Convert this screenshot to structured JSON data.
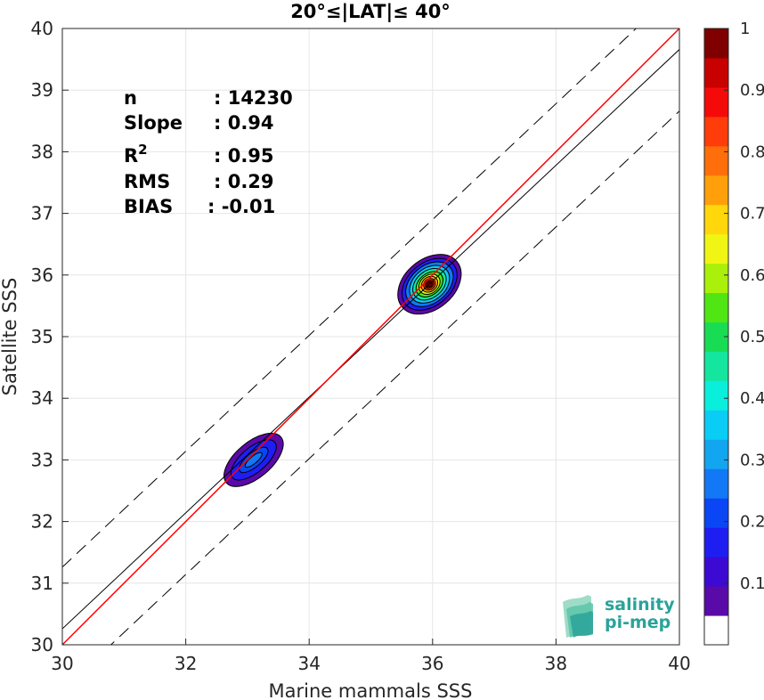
{
  "chart_data": {
    "type": "heatmap",
    "title": "20°≤|LAT|≤ 40°",
    "xlabel": "Marine mammals SSS",
    "ylabel": "Satellite SSS",
    "xlim": [
      30,
      40
    ],
    "ylim": [
      30,
      40
    ],
    "xticks": [
      "30",
      "32",
      "34",
      "36",
      "38",
      "40"
    ],
    "yticks": [
      "30",
      "31",
      "32",
      "33",
      "34",
      "35",
      "36",
      "37",
      "38",
      "39",
      "40"
    ],
    "grid": true,
    "stats": [
      {
        "key": "n",
        "value": ": 14230"
      },
      {
        "key": "Slope",
        "value": ": 0.94"
      },
      {
        "key": "R",
        "sup": "2",
        "value": ": 0.95"
      },
      {
        "key": "RMS",
        "value": ": 0.29"
      },
      {
        "key": "BIAS",
        "value": ": -0.01"
      }
    ],
    "lines": {
      "one_to_one": {
        "color": "#ff0000",
        "x": [
          30,
          40
        ],
        "y": [
          30,
          40
        ]
      },
      "regression": {
        "color": "#000000",
        "slope": 0.94,
        "intercept": 2.06
      },
      "rms_bands": {
        "style": "dashed",
        "offset": 1.0
      }
    },
    "density_clusters": [
      {
        "center_x": 35.95,
        "center_y": 35.85,
        "peak": 1.0
      },
      {
        "center_x": 33.1,
        "center_y": 33.0,
        "peak": 0.28
      }
    ],
    "colorbar": {
      "ticks": [
        "0.1",
        "0.2",
        "0.3",
        "0.4",
        "0.5",
        "0.6",
        "0.7",
        "0.8",
        "0.9",
        "1"
      ],
      "colors": [
        "#ffffff",
        "#5a0aa8",
        "#3c0ad2",
        "#1f1ef2",
        "#0a46f5",
        "#1278f5",
        "#12a5f0",
        "#0acdf5",
        "#0aeedc",
        "#14e6a0",
        "#19dc55",
        "#50e614",
        "#aaf00a",
        "#f0f514",
        "#ffd70a",
        "#ffa00a",
        "#ff6e0a",
        "#ff3c0a",
        "#f50a0a",
        "#c80000",
        "#800000"
      ]
    }
  },
  "logo": {
    "line1": "salinity",
    "line2": "pi-mep"
  }
}
